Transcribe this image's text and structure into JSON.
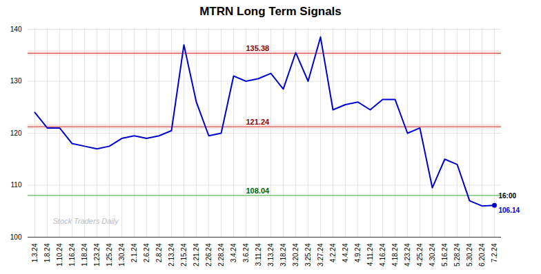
{
  "chart_data": {
    "type": "line",
    "title": "MTRN Long Term Signals",
    "categories": [
      "1.3.24",
      "1.8.24",
      "1.10.24",
      "1.16.24",
      "1.18.24",
      "1.23.24",
      "1.25.24",
      "1.30.24",
      "2.1.24",
      "2.6.24",
      "2.8.24",
      "2.13.24",
      "2.15.24",
      "2.21.24",
      "2.26.24",
      "2.28.24",
      "3.4.24",
      "3.6.24",
      "3.11.24",
      "3.13.24",
      "3.18.24",
      "3.20.24",
      "3.25.24",
      "3.27.24",
      "4.2.24",
      "4.4.24",
      "4.9.24",
      "4.11.24",
      "4.16.24",
      "4.18.24",
      "4.23.24",
      "4.25.24",
      "4.30.24",
      "5.16.24",
      "5.28.24",
      "5.30.24",
      "6.20.24",
      "7.2.24"
    ],
    "values": [
      124.0,
      121.0,
      121.0,
      118.0,
      117.5,
      117.0,
      117.5,
      119.0,
      119.5,
      119.0,
      119.5,
      120.5,
      137.0,
      126.0,
      119.5,
      120.0,
      131.0,
      130.0,
      130.5,
      131.5,
      128.5,
      135.5,
      130.0,
      138.5,
      124.5,
      125.5,
      126.0,
      124.5,
      126.5,
      126.5,
      120.0,
      121.0,
      109.5,
      115.0,
      114.0,
      107.0,
      106.0,
      106.14
    ],
    "color": "#0000cc",
    "ylim": [
      100,
      140
    ],
    "yticks": [
      100,
      110,
      120,
      130,
      140
    ],
    "grid": true,
    "hlines": [
      {
        "value": 135.38,
        "label": "135.38",
        "color": "#d9534f",
        "label_color": "#8b0000",
        "band": 0.5,
        "band_fill": "#f5c6c6"
      },
      {
        "value": 121.24,
        "label": "121.24",
        "color": "#d9534f",
        "label_color": "#8b0000",
        "band": 0.5,
        "band_fill": "#f5c6c6"
      },
      {
        "value": 108.04,
        "label": "108.04",
        "color": "#5cb85c",
        "label_color": "#006400"
      }
    ],
    "last_label": "16:00",
    "last_value_label": "106.14",
    "last_dot_color": "#0000cc",
    "watermark": "Stock Traders Daily"
  }
}
